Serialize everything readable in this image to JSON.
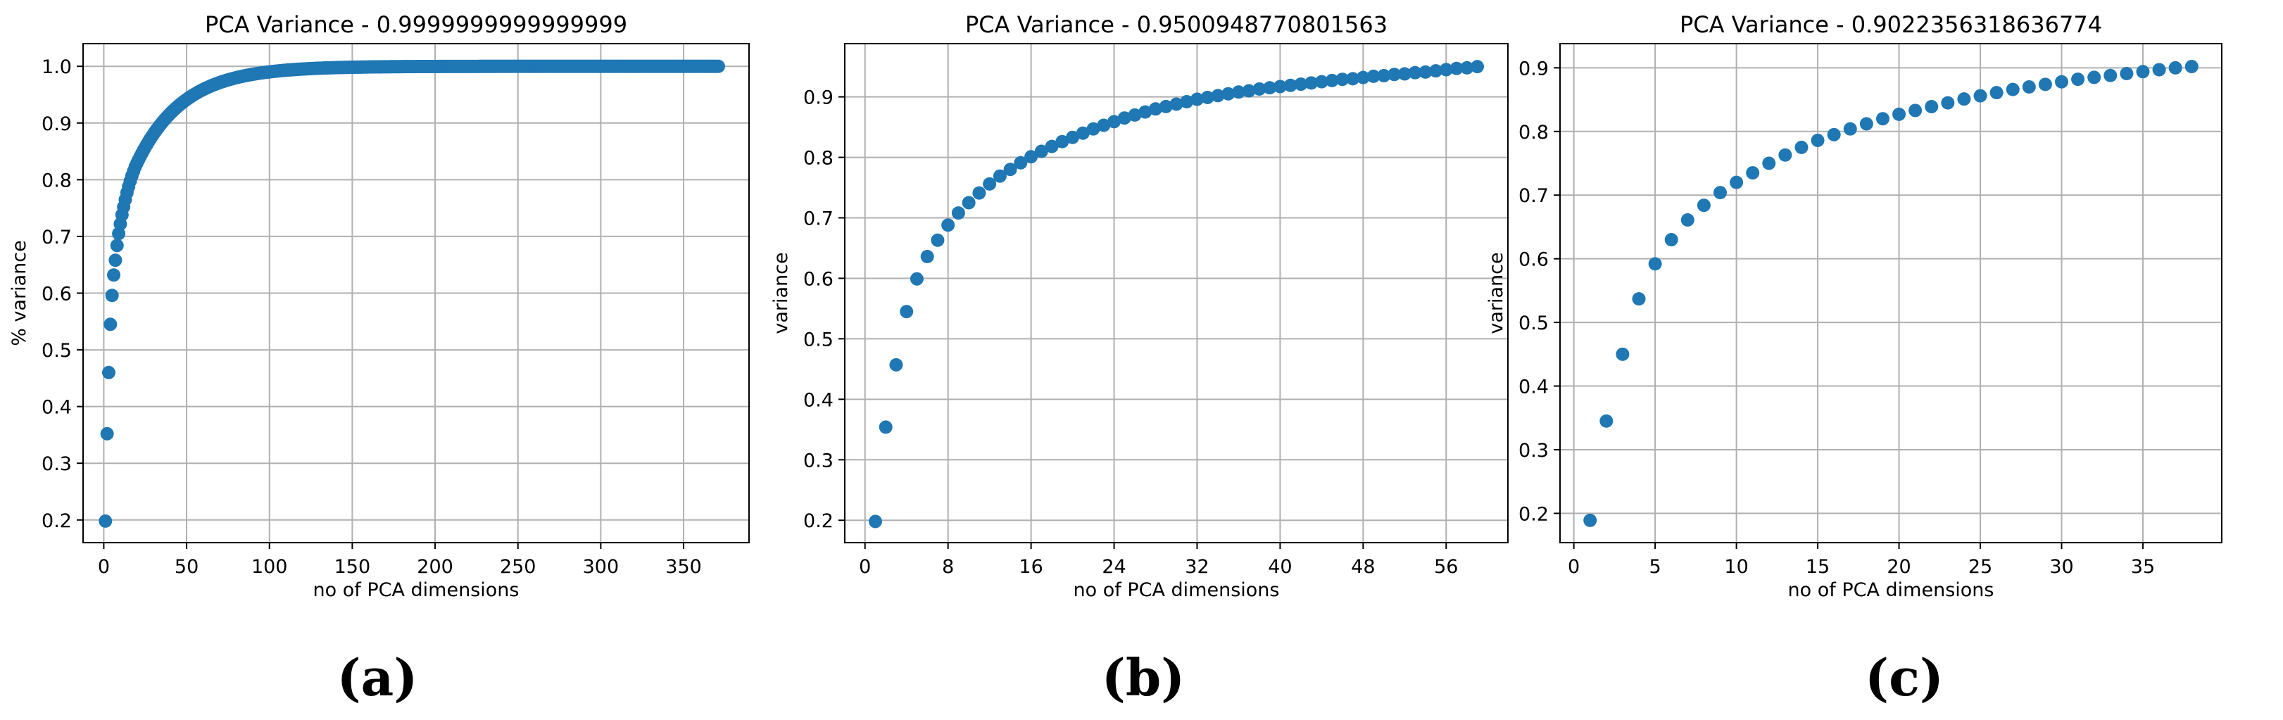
{
  "figure": {
    "colors": {
      "marker": "#1f77b4",
      "grid": "#b0b0b0",
      "axis": "#000000"
    },
    "captions": [
      "(a)",
      "(b)",
      "(c)"
    ]
  },
  "chart_data": [
    {
      "type": "scatter",
      "title": "PCA Variance - 0.9999999999999999",
      "xlabel": "no of PCA dimensions",
      "ylabel": "% variance",
      "xlim": [
        -12.5,
        389.5
      ],
      "ylim": [
        0.16,
        1.04
      ],
      "xticks": [
        0,
        50,
        100,
        150,
        200,
        250,
        300,
        350
      ],
      "yticks": [
        0.2,
        0.3,
        0.4,
        0.5,
        0.6,
        0.7,
        0.8,
        0.9,
        1.0
      ],
      "ytick_labels": [
        "0.2",
        "0.3",
        "0.4",
        "0.5",
        "0.6",
        "0.7",
        "0.8",
        "0.9",
        "1.0"
      ],
      "grid": true,
      "n_points": 371,
      "total": 0.9999999999999999,
      "leading_values": [
        0.198,
        0.352,
        0.46,
        0.545,
        0.596,
        0.632,
        0.658,
        0.684,
        0.705,
        0.722,
        0.738,
        0.752,
        0.765,
        0.777,
        0.788,
        0.798,
        0.807,
        0.815,
        0.823
      ]
    },
    {
      "type": "scatter",
      "title": "PCA Variance - 0.9500948770801563",
      "xlabel": "no of PCA dimensions",
      "ylabel": "variance",
      "xlim": [
        -1.95,
        61.95
      ],
      "ylim": [
        0.163,
        0.988
      ],
      "xticks": [
        0,
        8,
        16,
        24,
        32,
        40,
        48,
        56
      ],
      "yticks": [
        0.2,
        0.3,
        0.4,
        0.5,
        0.6,
        0.7,
        0.8,
        0.9
      ],
      "ytick_labels": [
        "0.2",
        "0.3",
        "0.4",
        "0.5",
        "0.6",
        "0.7",
        "0.8",
        "0.9"
      ],
      "grid": true,
      "x": [
        1,
        2,
        3,
        4,
        5,
        6,
        7,
        8,
        9,
        10,
        11,
        12,
        13,
        14,
        15,
        16,
        17,
        18,
        19,
        20,
        21,
        22,
        23,
        24,
        25,
        26,
        27,
        28,
        29,
        30,
        31,
        32,
        33,
        34,
        35,
        36,
        37,
        38,
        39,
        40,
        41,
        42,
        43,
        44,
        45,
        46,
        47,
        48,
        49,
        50,
        51,
        52,
        53,
        54,
        55,
        56,
        57,
        58,
        59
      ],
      "values": [
        0.198,
        0.354,
        0.457,
        0.545,
        0.599,
        0.636,
        0.663,
        0.688,
        0.708,
        0.725,
        0.741,
        0.756,
        0.769,
        0.78,
        0.791,
        0.801,
        0.81,
        0.818,
        0.826,
        0.833,
        0.84,
        0.847,
        0.853,
        0.859,
        0.865,
        0.87,
        0.875,
        0.88,
        0.884,
        0.888,
        0.892,
        0.896,
        0.899,
        0.902,
        0.905,
        0.908,
        0.91,
        0.913,
        0.915,
        0.917,
        0.919,
        0.921,
        0.923,
        0.925,
        0.927,
        0.929,
        0.93,
        0.932,
        0.934,
        0.935,
        0.937,
        0.938,
        0.94,
        0.941,
        0.943,
        0.945,
        0.947,
        0.948,
        0.95
      ]
    },
    {
      "type": "scatter",
      "title": "PCA Variance - 0.9022356318636774",
      "xlabel": "no of PCA dimensions",
      "ylabel": "variance",
      "xlim": [
        -0.85,
        39.85
      ],
      "ylim": [
        0.154,
        0.938
      ],
      "xticks": [
        0,
        5,
        10,
        15,
        20,
        25,
        30,
        35
      ],
      "yticks": [
        0.2,
        0.3,
        0.4,
        0.5,
        0.6,
        0.7,
        0.8,
        0.9
      ],
      "ytick_labels": [
        "0.2",
        "0.3",
        "0.4",
        "0.5",
        "0.6",
        "0.7",
        "0.8",
        "0.9"
      ],
      "grid": true,
      "x": [
        1,
        2,
        3,
        4,
        5,
        6,
        7,
        8,
        9,
        10,
        11,
        12,
        13,
        14,
        15,
        16,
        17,
        18,
        19,
        20,
        21,
        22,
        23,
        24,
        25,
        26,
        27,
        28,
        29,
        30,
        31,
        32,
        33,
        34,
        35,
        36,
        37,
        38
      ],
      "values": [
        0.189,
        0.345,
        0.45,
        0.537,
        0.592,
        0.63,
        0.661,
        0.684,
        0.704,
        0.72,
        0.735,
        0.75,
        0.763,
        0.775,
        0.786,
        0.795,
        0.804,
        0.812,
        0.82,
        0.827,
        0.833,
        0.839,
        0.845,
        0.851,
        0.856,
        0.861,
        0.866,
        0.87,
        0.874,
        0.878,
        0.882,
        0.885,
        0.888,
        0.891,
        0.894,
        0.897,
        0.9,
        0.902
      ]
    }
  ]
}
